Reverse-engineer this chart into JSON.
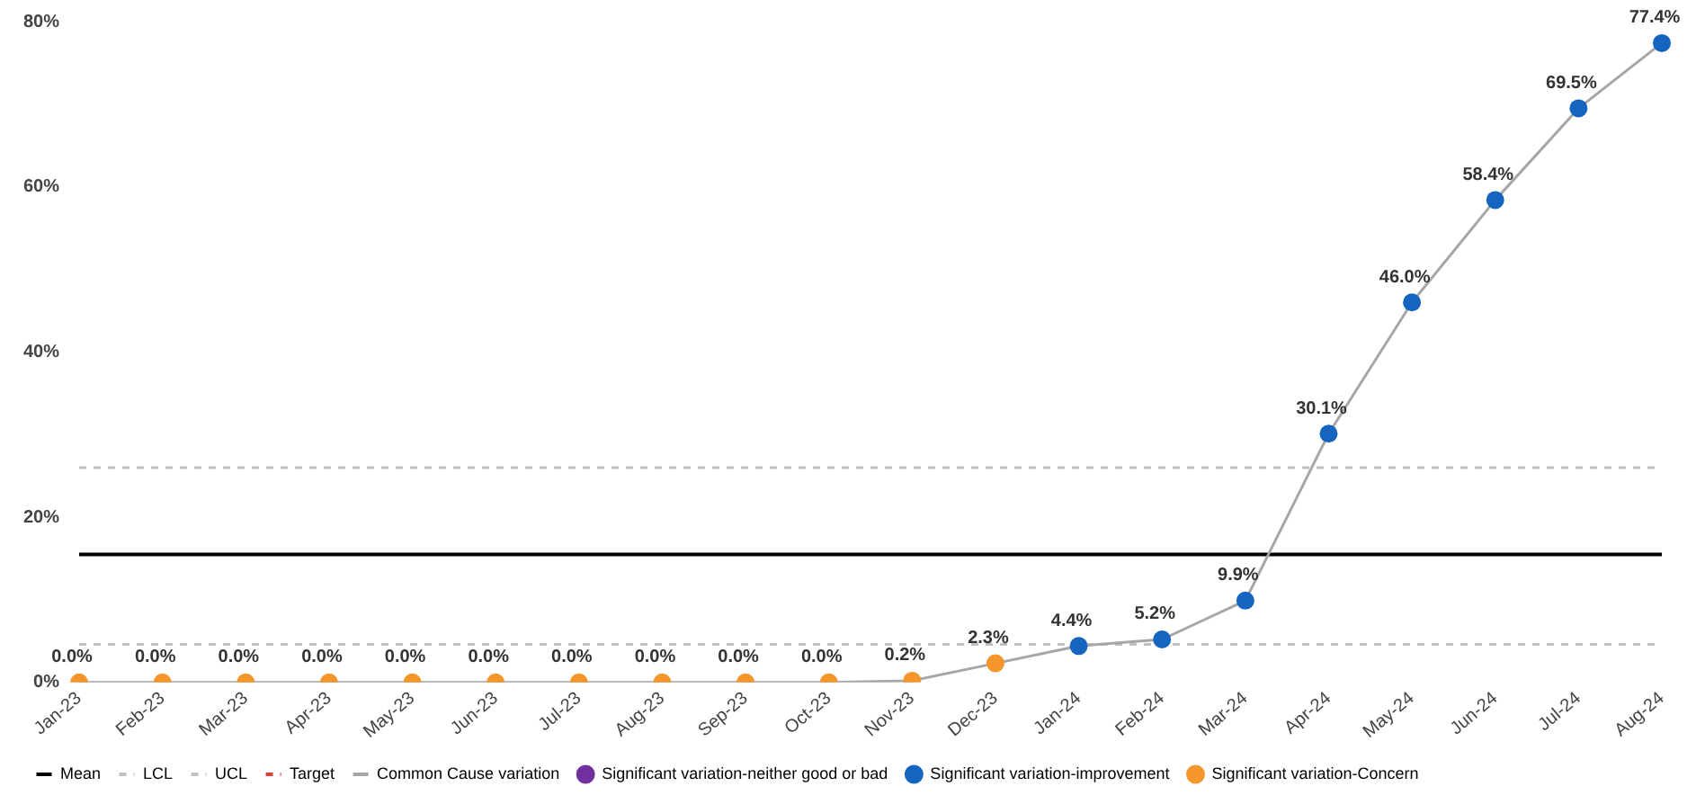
{
  "chart_data": {
    "type": "line",
    "categories": [
      "Jan-23",
      "Feb-23",
      "Mar-23",
      "Apr-23",
      "May-23",
      "Jun-23",
      "Jul-23",
      "Aug-23",
      "Sep-23",
      "Oct-23",
      "Nov-23",
      "Dec-23",
      "Jan-24",
      "Feb-24",
      "Mar-24",
      "Apr-24",
      "May-24",
      "Jun-24",
      "Jul-24",
      "Aug-24"
    ],
    "series": [
      {
        "name": "Mean",
        "type": "line",
        "color": "#000000",
        "line_style": "solid",
        "marker": "none",
        "values": [
          15.5,
          15.5,
          15.5,
          15.5,
          15.5,
          15.5,
          15.5,
          15.5,
          15.5,
          15.5,
          15.5,
          15.5,
          15.5,
          15.5,
          15.5,
          15.5,
          15.5,
          15.5,
          15.5,
          15.5
        ]
      },
      {
        "name": "LCL",
        "type": "line",
        "color": "#c0c0c0",
        "line_style": "dashed",
        "marker": "none",
        "values": [
          4.6,
          4.6,
          4.6,
          4.6,
          4.6,
          4.6,
          4.6,
          4.6,
          4.6,
          4.6,
          4.6,
          4.6,
          4.6,
          4.6,
          4.6,
          4.6,
          4.6,
          4.6,
          4.6,
          4.6
        ]
      },
      {
        "name": "UCL",
        "type": "line",
        "color": "#c0c0c0",
        "line_style": "dashed",
        "marker": "none",
        "values": [
          26,
          26,
          26,
          26,
          26,
          26,
          26,
          26,
          26,
          26,
          26,
          26,
          26,
          26,
          26,
          26,
          26,
          26,
          26,
          26
        ]
      },
      {
        "name": "Target",
        "type": "line",
        "color": "#e03c3c",
        "line_style": "dashed",
        "marker": "none",
        "values": [
          null,
          null,
          null,
          null,
          null,
          null,
          null,
          null,
          null,
          null,
          null,
          null,
          null,
          null,
          null,
          null,
          null,
          null,
          null,
          null
        ]
      },
      {
        "name": "Common Cause variation",
        "type": "line",
        "color": "#a6a6a6",
        "line_style": "solid",
        "marker": "none",
        "values": [
          0,
          0,
          0,
          0,
          0,
          0,
          0,
          0,
          0,
          0,
          0.2,
          2.3,
          4.4,
          5.2,
          9.9,
          30.1,
          46.0,
          58.4,
          69.5,
          77.4
        ],
        "value_labels": [
          "0.0%",
          "0.0%",
          "0.0%",
          "0.0%",
          "0.0%",
          "0.0%",
          "0.0%",
          "0.0%",
          "0.0%",
          "0.0%",
          "0.2%",
          "2.3%",
          "4.4%",
          "5.2%",
          "9.9%",
          "30.1%",
          "46.0%",
          "58.4%",
          "69.5%",
          "77.4%"
        ]
      },
      {
        "name": "Significant variation-neither good or bad",
        "type": "scatter",
        "color": "#7030a0",
        "marker": "circle",
        "values": [
          null,
          null,
          null,
          null,
          null,
          null,
          null,
          null,
          null,
          null,
          null,
          null,
          null,
          null,
          null,
          null,
          null,
          null,
          null,
          null
        ]
      },
      {
        "name": "Significant variation-improvement",
        "type": "scatter",
        "color": "#1565c0",
        "marker": "circle",
        "values": [
          null,
          null,
          null,
          null,
          null,
          null,
          null,
          null,
          null,
          null,
          null,
          null,
          4.4,
          5.2,
          9.9,
          30.1,
          46.0,
          58.4,
          69.5,
          77.4
        ]
      },
      {
        "name": "Significant variation-Concern",
        "type": "scatter",
        "color": "#f5962d",
        "marker": "circle",
        "values": [
          0,
          0,
          0,
          0,
          0,
          0,
          0,
          0,
          0,
          0,
          0.2,
          2.3,
          null,
          null,
          null,
          null,
          null,
          null,
          null,
          null
        ]
      }
    ],
    "ylim": [
      0,
      80
    ],
    "yticks": [
      {
        "value": 0,
        "label": "0%"
      },
      {
        "value": 20,
        "label": "20%"
      },
      {
        "value": 40,
        "label": "40%"
      },
      {
        "value": 60,
        "label": "60%"
      },
      {
        "value": 80,
        "label": "80%"
      }
    ],
    "grid": false,
    "legend": "bottom"
  }
}
